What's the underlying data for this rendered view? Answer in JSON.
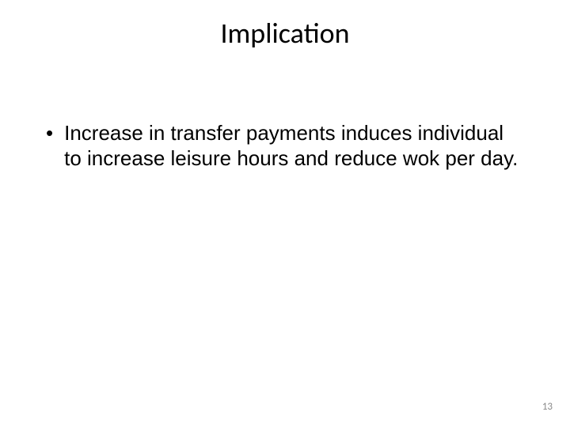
{
  "slide": {
    "title": "Implication",
    "bullets": [
      {
        "text": "Increase in transfer payments induces individual to increase leisure hours and reduce wok per day."
      }
    ],
    "page_number": "13",
    "background_color": "#ffffff",
    "title_color": "#000000",
    "body_color": "#000000",
    "page_number_color": "#8a8a8a",
    "title_fontsize": 36,
    "body_fontsize": 26,
    "page_number_fontsize": 13
  }
}
